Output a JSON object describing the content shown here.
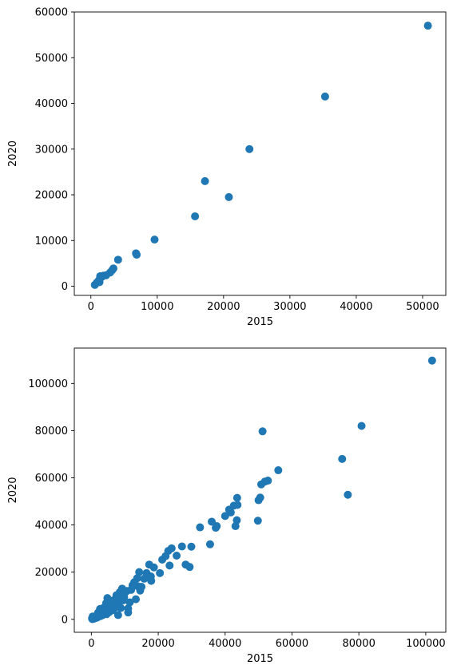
{
  "chart_data": [
    {
      "type": "scatter",
      "title": "",
      "xlabel": "2015",
      "ylabel": "2020",
      "xlim": [
        -2500,
        53500
      ],
      "ylim": [
        -2000,
        60000
      ],
      "xticks": [
        0,
        10000,
        20000,
        30000,
        40000,
        50000
      ],
      "yticks": [
        0,
        10000,
        20000,
        30000,
        40000,
        50000,
        60000
      ],
      "grid": false,
      "marker_color": "#1f77b4",
      "x": [
        50800,
        35300,
        23900,
        17200,
        20800,
        15700,
        9600,
        6800,
        6900,
        4100,
        3400,
        3200,
        2900,
        2300,
        1900,
        1600,
        1400,
        1300,
        1200,
        900,
        600
      ],
      "y": [
        57000,
        41500,
        30000,
        23000,
        19500,
        15300,
        10200,
        7200,
        6900,
        5800,
        3900,
        3500,
        3000,
        2400,
        2300,
        2000,
        2200,
        900,
        1300,
        800,
        300
      ]
    },
    {
      "type": "scatter",
      "title": "",
      "xlabel": "2015",
      "ylabel": "2020",
      "xlim": [
        -5100,
        106000
      ],
      "ylim": [
        -5500,
        115000
      ],
      "xticks": [
        0,
        20000,
        40000,
        60000,
        80000,
        100000
      ],
      "yticks": [
        0,
        20000,
        40000,
        60000,
        80000,
        100000
      ],
      "grid": false,
      "marker_color": "#1f77b4",
      "x": [
        101900,
        80800,
        75000,
        76700,
        51200,
        55900,
        52800,
        51900,
        50800,
        50500,
        50000,
        49800,
        43600,
        43700,
        43500,
        43100,
        42600,
        41700,
        41200,
        40000,
        37500,
        36000,
        35500,
        37200,
        32500,
        29900,
        29400,
        28200,
        27100,
        25500,
        24000,
        23400,
        23000,
        22200,
        21200,
        20500,
        18700,
        17800,
        17900,
        17300,
        16500,
        15800,
        15000,
        14600,
        14300,
        13700,
        13300,
        13900,
        12800,
        12300,
        11900,
        11500,
        11000,
        10600,
        10200,
        9800,
        9500,
        9200,
        9000,
        8800,
        8500,
        8200,
        8100,
        7800,
        7600,
        7500,
        7200,
        7000,
        6800,
        6500,
        6300,
        6000,
        5800,
        5500,
        5300,
        5000,
        4800,
        4600,
        4400,
        4200,
        4000,
        3800,
        3600,
        3400,
        3200,
        3000,
        2800,
        2600,
        2400,
        2200,
        2000,
        1800,
        1600,
        1400,
        1200,
        1000,
        800,
        600,
        500,
        400,
        300,
        200,
        8000,
        11000
      ],
      "y": [
        109700,
        82000,
        68000,
        52800,
        79700,
        63200,
        58800,
        58400,
        57200,
        51600,
        50500,
        41800,
        51500,
        48500,
        42000,
        39500,
        48200,
        45300,
        46500,
        43800,
        39500,
        41400,
        31800,
        38800,
        39000,
        30800,
        22200,
        23200,
        30900,
        27000,
        30100,
        22800,
        29000,
        26800,
        25300,
        19600,
        22000,
        18200,
        16300,
        23200,
        19600,
        17200,
        13800,
        12200,
        20000,
        17400,
        8500,
        14000,
        15700,
        14400,
        12500,
        7200,
        2900,
        12000,
        11500,
        9300,
        8000,
        13000,
        10000,
        4800,
        11500,
        9400,
        7000,
        8900,
        5800,
        10200,
        6400,
        4900,
        8200,
        6000,
        3800,
        7800,
        4600,
        6200,
        3000,
        5400,
        9000,
        2200,
        6800,
        4400,
        3600,
        2600,
        4800,
        1800,
        2400,
        3200,
        1400,
        4400,
        2000,
        1200,
        2800,
        800,
        1600,
        600,
        1000,
        400,
        300,
        500,
        200,
        1200,
        100,
        400,
        1800,
        4600
      ]
    }
  ]
}
